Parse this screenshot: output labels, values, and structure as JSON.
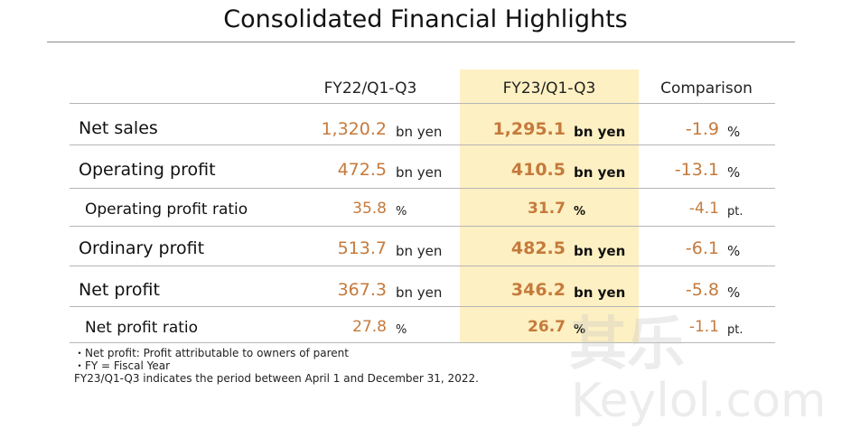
{
  "title": "Consolidated Financial Highlights",
  "columns": {
    "prev": "FY22/Q1-Q3",
    "curr": "FY23/Q1-Q3",
    "comparison": "Comparison"
  },
  "rows": [
    {
      "label": "Net sales",
      "prev": "1,320.2",
      "prev_unit": "bn yen",
      "curr": "1,295.1",
      "curr_unit": "bn yen",
      "cmp": "-1.9",
      "cmp_unit": "%"
    },
    {
      "label": "Operating profit",
      "prev": "472.5",
      "prev_unit": "bn yen",
      "curr": "410.5",
      "curr_unit": "bn yen",
      "cmp": "-13.1",
      "cmp_unit": "%"
    },
    {
      "label": "Operating profit ratio",
      "prev": "35.8",
      "prev_unit": "%",
      "curr": "31.7",
      "curr_unit": "%",
      "cmp": "-4.1",
      "cmp_unit": "pt."
    },
    {
      "label": "Ordinary profit",
      "prev": "513.7",
      "prev_unit": "bn yen",
      "curr": "482.5",
      "curr_unit": "bn yen",
      "cmp": "-6.1",
      "cmp_unit": "%"
    },
    {
      "label": "Net profit",
      "prev": "367.3",
      "prev_unit": "bn yen",
      "curr": "346.2",
      "curr_unit": "bn yen",
      "cmp": "-5.8",
      "cmp_unit": "%"
    },
    {
      "label": "Net profit ratio",
      "prev": "27.8",
      "prev_unit": "%",
      "curr": "26.7",
      "curr_unit": "%",
      "cmp": "-1.1",
      "cmp_unit": "pt."
    }
  ],
  "notes": [
    "・Net profit: Profit attributable to owners of parent",
    "・FY = Fiscal Year",
    "  FY23/Q1-Q3 indicates the period between April 1 and December 31, 2022."
  ],
  "watermark": {
    "cn": "其乐",
    "en": "Keylol.com"
  },
  "colors": {
    "value": "#c57a3c",
    "highlight": "#fdf0c2"
  }
}
